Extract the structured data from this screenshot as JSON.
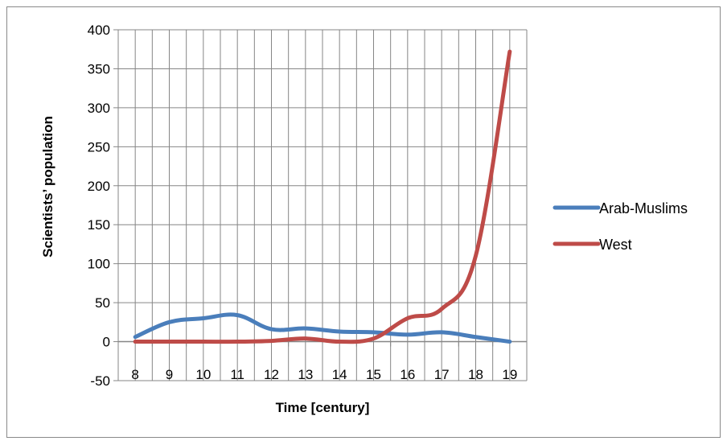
{
  "chart_data": {
    "type": "line",
    "title": "",
    "xlabel": "Time [century]",
    "ylabel": "Scientists’ population",
    "categories": [
      "8",
      "9",
      "10",
      "11",
      "12",
      "13",
      "14",
      "15",
      "16",
      "17",
      "18",
      "19"
    ],
    "ylim": [
      -50,
      400
    ],
    "yticks": [
      400,
      350,
      300,
      250,
      200,
      150,
      100,
      50,
      0,
      -50
    ],
    "grid": true,
    "legend_position": "right",
    "series": [
      {
        "name": "Arab-Muslims",
        "color": "#4a7ebb",
        "values": [
          6,
          25,
          30,
          34,
          16,
          17,
          13,
          12,
          9,
          12,
          6,
          0
        ]
      },
      {
        "name": "West",
        "color": "#be4b48",
        "values": [
          0,
          0,
          0,
          0,
          1,
          4,
          0,
          4,
          30,
          42,
          110,
          372
        ]
      }
    ]
  }
}
